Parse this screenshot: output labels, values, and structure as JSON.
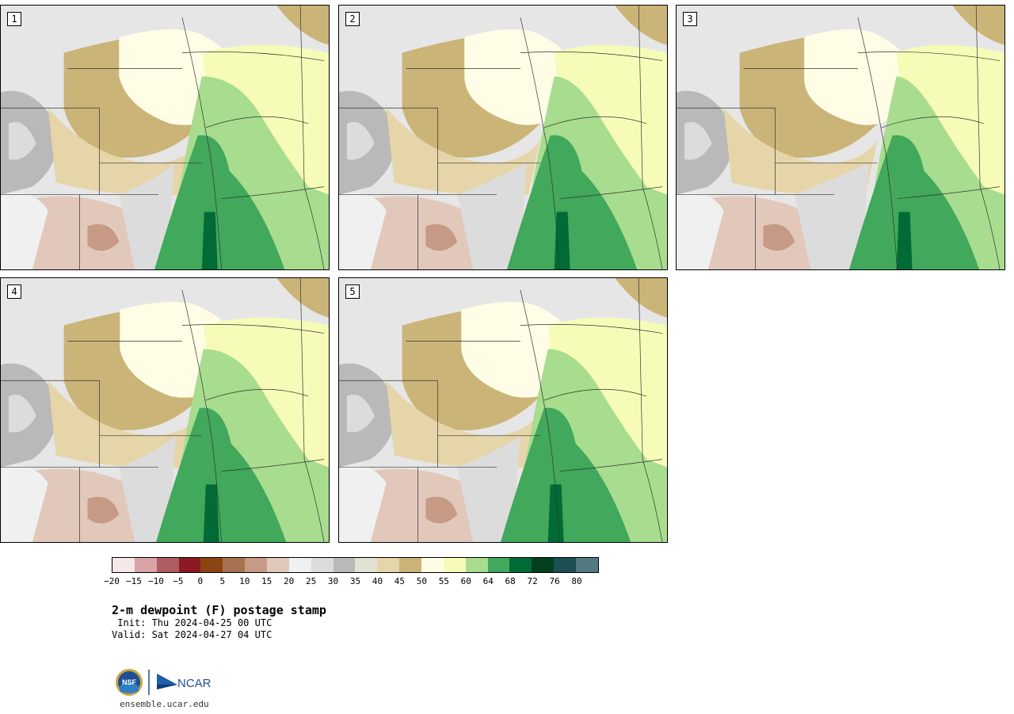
{
  "members": [
    {
      "label": "1"
    },
    {
      "label": "2"
    },
    {
      "label": "3"
    },
    {
      "label": "4"
    },
    {
      "label": "5"
    }
  ],
  "colorbar": {
    "colors": [
      "#f5e8e9",
      "#d9a3a8",
      "#b05c63",
      "#8b1a22",
      "#8b4513",
      "#a87250",
      "#c69a84",
      "#e2c8bb",
      "#f0f0f0",
      "#dcdcdc",
      "#b9b9b9",
      "#e2e2d4",
      "#e6d5a8",
      "#cbb478",
      "#fffde6",
      "#f7fbb8",
      "#a8dc8e",
      "#41a85c",
      "#006b35",
      "#00401f",
      "#1c4f55",
      "#527a80"
    ],
    "tick_labels": [
      "−20",
      "−15",
      "−10",
      "−5",
      "0",
      "5",
      "10",
      "15",
      "20",
      "25",
      "30",
      "35",
      "40",
      "45",
      "50",
      "55",
      "60",
      "64",
      "68",
      "72",
      "76",
      "80"
    ]
  },
  "title": "2-m dewpoint (F) postage stamp",
  "init": " Init: Thu 2024-04-25 00 UTC",
  "valid": "Valid: Sat 2024-04-27 04 UTC",
  "logos": {
    "nsf": "NSF",
    "ncar": "NCAR"
  },
  "url": "ensemble.ucar.edu"
}
